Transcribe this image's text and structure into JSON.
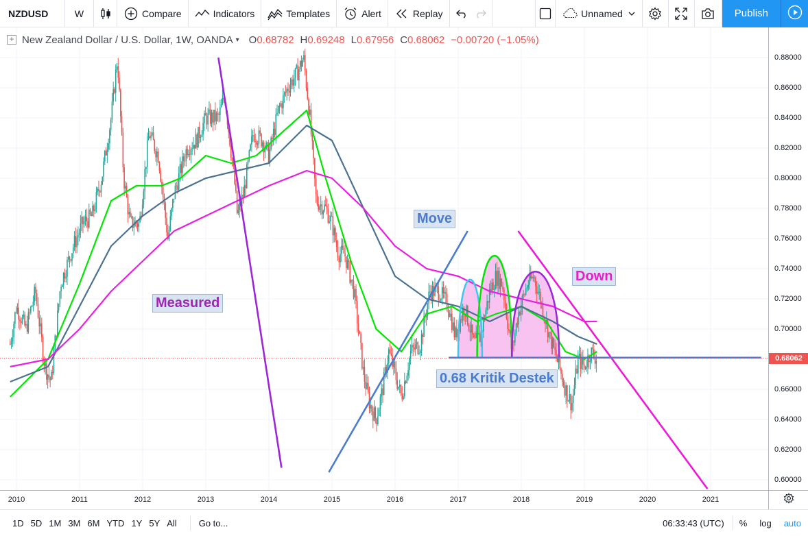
{
  "toolbar": {
    "symbol": "NZDUSD",
    "interval": "W",
    "compare_label": "Compare",
    "indicators_label": "Indicators",
    "templates_label": "Templates",
    "alert_label": "Alert",
    "replay_label": "Replay",
    "layout_name": "Unnamed",
    "publish_label": "Publish"
  },
  "legend": {
    "title": "New Zealand Dollar / U.S. Dollar, 1W, OANDA",
    "open_key": "O",
    "open": "0.68782",
    "high_key": "H",
    "high": "0.69248",
    "low_key": "L",
    "low": "0.67956",
    "close_key": "C",
    "close": "0.68062",
    "change": "−0.00720 (−1.05%)"
  },
  "price_axis": {
    "ticks": [
      "0.88000",
      "0.86000",
      "0.84000",
      "0.82000",
      "0.80000",
      "0.78000",
      "0.76000",
      "0.74000",
      "0.72000",
      "0.70000",
      "0.66000",
      "0.64000",
      "0.62000",
      "0.60000"
    ],
    "last_price": "0.68062"
  },
  "time_axis": {
    "ticks": [
      "2010",
      "2011",
      "2012",
      "2013",
      "2014",
      "2015",
      "2016",
      "2017",
      "2018",
      "2019",
      "2020",
      "2021"
    ]
  },
  "annotations": {
    "measured": "Measured",
    "move": "Move",
    "down": "Down",
    "support": "0.68 Kritik Destek"
  },
  "colors": {
    "up_candle": "#26a69a",
    "down_candle": "#ef5350",
    "ma_green": "#00e600",
    "ma_blue": "#4a7191",
    "ma_magenta": "#e91ee1",
    "trend_purple": "#9c27d8",
    "trend_blue": "#4a7bd1",
    "trend_magenta": "#ee18d8",
    "pattern_fill": "#f7b8ee",
    "accent": "#2196f3"
  },
  "chart_data": {
    "type": "candlestick",
    "instrument": "NZDUSD",
    "timeframe": "1W",
    "ylim": [
      0.59,
      0.89
    ],
    "xlim": [
      2009.9,
      2021.8
    ],
    "price_path": [
      [
        2009.9,
        0.69
      ],
      [
        2010.0,
        0.715
      ],
      [
        2010.15,
        0.7
      ],
      [
        2010.3,
        0.725
      ],
      [
        2010.45,
        0.675
      ],
      [
        2010.55,
        0.665
      ],
      [
        2010.7,
        0.73
      ],
      [
        2010.9,
        0.755
      ],
      [
        2011.05,
        0.77
      ],
      [
        2011.2,
        0.775
      ],
      [
        2011.35,
        0.8
      ],
      [
        2011.5,
        0.84
      ],
      [
        2011.6,
        0.88
      ],
      [
        2011.7,
        0.8
      ],
      [
        2011.8,
        0.77
      ],
      [
        2011.95,
        0.77
      ],
      [
        2012.1,
        0.83
      ],
      [
        2012.25,
        0.815
      ],
      [
        2012.4,
        0.76
      ],
      [
        2012.5,
        0.79
      ],
      [
        2012.7,
        0.82
      ],
      [
        2012.85,
        0.825
      ],
      [
        2013.0,
        0.84
      ],
      [
        2013.2,
        0.84
      ],
      [
        2013.3,
        0.855
      ],
      [
        2013.45,
        0.8
      ],
      [
        2013.5,
        0.775
      ],
      [
        2013.6,
        0.79
      ],
      [
        2013.75,
        0.83
      ],
      [
        2013.9,
        0.825
      ],
      [
        2014.0,
        0.815
      ],
      [
        2014.15,
        0.845
      ],
      [
        2014.3,
        0.86
      ],
      [
        2014.45,
        0.87
      ],
      [
        2014.55,
        0.88
      ],
      [
        2014.65,
        0.84
      ],
      [
        2014.75,
        0.785
      ],
      [
        2014.9,
        0.78
      ],
      [
        2015.0,
        0.77
      ],
      [
        2015.1,
        0.75
      ],
      [
        2015.2,
        0.75
      ],
      [
        2015.35,
        0.725
      ],
      [
        2015.5,
        0.67
      ],
      [
        2015.6,
        0.65
      ],
      [
        2015.7,
        0.64
      ],
      [
        2015.8,
        0.66
      ],
      [
        2015.9,
        0.685
      ],
      [
        2016.0,
        0.67
      ],
      [
        2016.1,
        0.655
      ],
      [
        2016.25,
        0.685
      ],
      [
        2016.4,
        0.69
      ],
      [
        2016.55,
        0.725
      ],
      [
        2016.7,
        0.725
      ],
      [
        2016.85,
        0.715
      ],
      [
        2016.95,
        0.695
      ],
      [
        2017.1,
        0.715
      ],
      [
        2017.25,
        0.69
      ],
      [
        2017.35,
        0.695
      ],
      [
        2017.5,
        0.725
      ],
      [
        2017.6,
        0.735
      ],
      [
        2017.7,
        0.73
      ],
      [
        2017.85,
        0.685
      ],
      [
        2017.95,
        0.71
      ],
      [
        2018.1,
        0.73
      ],
      [
        2018.2,
        0.735
      ],
      [
        2018.3,
        0.72
      ],
      [
        2018.45,
        0.695
      ],
      [
        2018.6,
        0.675
      ],
      [
        2018.7,
        0.66
      ],
      [
        2018.8,
        0.65
      ],
      [
        2018.9,
        0.68
      ],
      [
        2019.0,
        0.675
      ],
      [
        2019.1,
        0.685
      ],
      [
        2019.2,
        0.68
      ]
    ],
    "moving_averages": [
      {
        "color": "green",
        "points": [
          [
            2009.9,
            0.655
          ],
          [
            2010.5,
            0.68
          ],
          [
            2011.0,
            0.73
          ],
          [
            2011.5,
            0.785
          ],
          [
            2011.9,
            0.795
          ],
          [
            2012.3,
            0.795
          ],
          [
            2012.6,
            0.8
          ],
          [
            2013.0,
            0.815
          ],
          [
            2013.4,
            0.81
          ],
          [
            2013.8,
            0.815
          ],
          [
            2014.2,
            0.83
          ],
          [
            2014.6,
            0.845
          ],
          [
            2014.9,
            0.8
          ],
          [
            2015.3,
            0.745
          ],
          [
            2015.7,
            0.7
          ],
          [
            2016.1,
            0.685
          ],
          [
            2016.5,
            0.71
          ],
          [
            2016.9,
            0.715
          ],
          [
            2017.3,
            0.705
          ],
          [
            2017.6,
            0.71
          ],
          [
            2018.0,
            0.715
          ],
          [
            2018.4,
            0.705
          ],
          [
            2018.7,
            0.685
          ],
          [
            2019.0,
            0.68
          ],
          [
            2019.2,
            0.685
          ]
        ]
      },
      {
        "color": "blue",
        "points": [
          [
            2009.9,
            0.665
          ],
          [
            2010.5,
            0.675
          ],
          [
            2011.0,
            0.715
          ],
          [
            2011.5,
            0.755
          ],
          [
            2012.0,
            0.775
          ],
          [
            2012.5,
            0.79
          ],
          [
            2013.0,
            0.8
          ],
          [
            2013.5,
            0.805
          ],
          [
            2014.0,
            0.81
          ],
          [
            2014.6,
            0.835
          ],
          [
            2015.0,
            0.825
          ],
          [
            2015.5,
            0.78
          ],
          [
            2016.0,
            0.735
          ],
          [
            2016.5,
            0.72
          ],
          [
            2017.0,
            0.715
          ],
          [
            2017.5,
            0.705
          ],
          [
            2018.0,
            0.715
          ],
          [
            2018.5,
            0.705
          ],
          [
            2018.9,
            0.695
          ],
          [
            2019.2,
            0.69
          ]
        ]
      },
      {
        "color": "magenta",
        "points": [
          [
            2009.9,
            0.675
          ],
          [
            2010.5,
            0.68
          ],
          [
            2011.0,
            0.7
          ],
          [
            2011.5,
            0.725
          ],
          [
            2012.0,
            0.745
          ],
          [
            2012.5,
            0.765
          ],
          [
            2013.0,
            0.775
          ],
          [
            2013.5,
            0.785
          ],
          [
            2014.0,
            0.795
          ],
          [
            2014.6,
            0.805
          ],
          [
            2015.0,
            0.8
          ],
          [
            2015.5,
            0.78
          ],
          [
            2016.0,
            0.755
          ],
          [
            2016.5,
            0.74
          ],
          [
            2017.0,
            0.735
          ],
          [
            2017.5,
            0.725
          ],
          [
            2018.0,
            0.72
          ],
          [
            2018.5,
            0.715
          ],
          [
            2019.0,
            0.705
          ],
          [
            2019.2,
            0.705
          ]
        ]
      }
    ],
    "trend_lines": [
      {
        "label": "Measured",
        "from": [
          2013.2,
          0.88
        ],
        "to": [
          2014.2,
          0.608
        ]
      },
      {
        "label": "Move",
        "from": [
          2014.95,
          0.605
        ],
        "to": [
          2017.15,
          0.765
        ]
      },
      {
        "label": "Down",
        "from": [
          2017.95,
          0.765
        ],
        "to": [
          2020.95,
          0.594
        ]
      },
      {
        "label": "0.68 Kritik Destek",
        "from": [
          2016.85,
          0.681
        ],
        "to": [
          2021.8,
          0.681
        ]
      }
    ]
  }
}
